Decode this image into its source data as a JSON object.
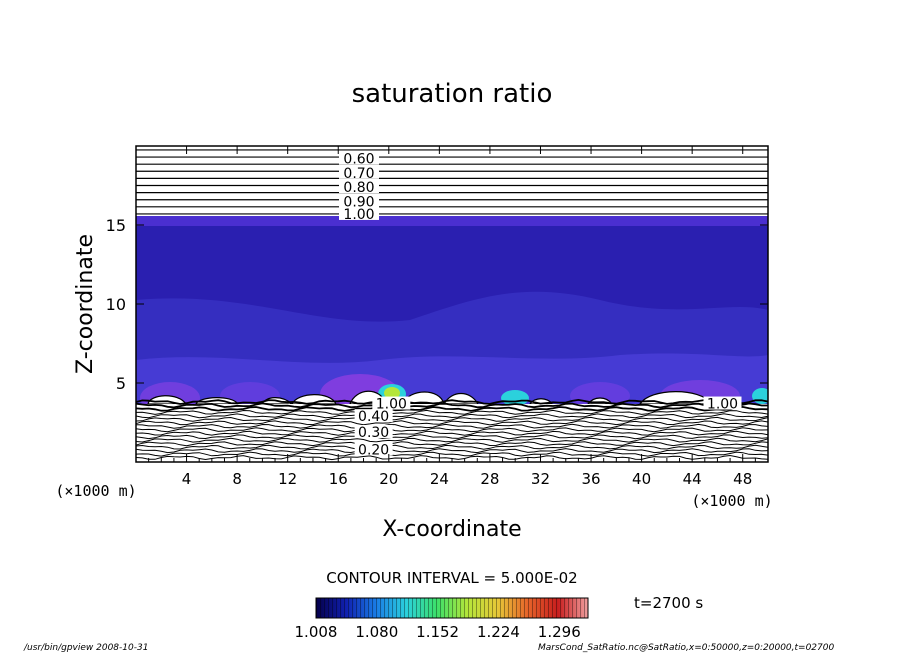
{
  "chart_data": {
    "type": "contour",
    "title": "saturation ratio",
    "xlabel": "X-coordinate",
    "ylabel": "Z-coordinate",
    "x_unit": "(×1000 m)",
    "y_unit": "(×1000 m)",
    "xlim": [
      0,
      50
    ],
    "ylim": [
      0,
      20
    ],
    "x_ticks": [
      4,
      8,
      12,
      16,
      20,
      24,
      28,
      32,
      36,
      40,
      44,
      48
    ],
    "y_ticks": [
      5,
      10,
      15
    ],
    "contour_interval_label": "CONTOUR INTERVAL = 5.000E-02",
    "time_label": "t=2700 s",
    "colorbar": {
      "min": 1.008,
      "max": 1.33,
      "tick_values": [
        1.008,
        1.08,
        1.152,
        1.224,
        1.296
      ],
      "tick_labels": [
        "1.008",
        "1.080",
        "1.152",
        "1.224",
        "1.296"
      ],
      "colors": [
        "#05004a",
        "#1020b0",
        "#1a7de6",
        "#2bd1dc",
        "#3ce06a",
        "#b4e63a",
        "#e6c838",
        "#e6642a",
        "#c81e1e",
        "#f0a0a0"
      ]
    },
    "upper_contour_labels": [
      {
        "text": "0.60",
        "z": 19.2
      },
      {
        "text": "0.70",
        "z": 18.3
      },
      {
        "text": "0.80",
        "z": 17.4
      },
      {
        "text": "0.90",
        "z": 16.5
      },
      {
        "text": "1.00",
        "z": 15.7
      }
    ],
    "lower_contour_labels": [
      {
        "text": "1.00",
        "x": 20.2,
        "z": 3.7
      },
      {
        "text": "0.40",
        "x": 18.8,
        "z": 2.9
      },
      {
        "text": "0.30",
        "x": 18.8,
        "z": 1.9
      },
      {
        "text": "0.20",
        "x": 18.8,
        "z": 0.8
      },
      {
        "text": "1.00",
        "x": 46.4,
        "z": 3.7
      }
    ],
    "colors": {
      "background_field": "#2a1fb0",
      "contour_line": "#000000"
    }
  },
  "footer": {
    "left": "/usr/bin/gpview   2008-10-31",
    "right": "MarsCond_SatRatio.nc@SatRatio,x=0:50000,z=0:20000,t=02700"
  }
}
